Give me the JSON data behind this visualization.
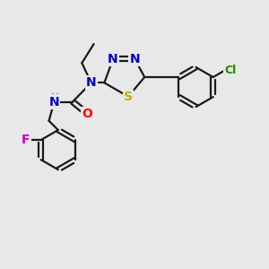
{
  "bg_color": "#e8e8e8",
  "bond_color": "#1a1a1a",
  "bond_width": 1.6,
  "atom_colors": {
    "N": "#0000cc",
    "S": "#ccaa00",
    "O": "#ff0000",
    "F": "#cc00cc",
    "Cl": "#228800",
    "H": "#558888",
    "C": "#1a1a1a"
  },
  "font_size_atom": 10,
  "fig_bg": "#e8e8e8"
}
